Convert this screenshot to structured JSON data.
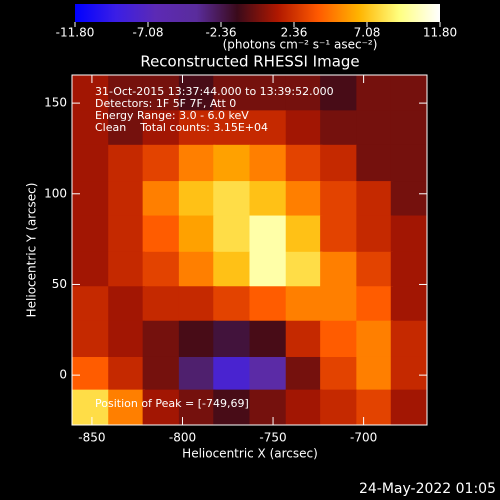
{
  "chart_data": {
    "type": "heatmap",
    "title": "Reconstructed RHESSI Image",
    "x_label": "Heliocentric X (arcsec)",
    "y_label": "Heliocentric Y (arcsec)",
    "annotations": [
      "31-Oct-2015 13:37:44.000 to 13:39:52.000",
      "Detectors: 1F 5F 7F, Att 0",
      "Energy Range: 3.0 - 6.0 keV",
      "Clean    Total counts: 3.15E+04"
    ],
    "peak_label": "Position of Peak = [-749,69]",
    "footer": "24-May-2022 01:05",
    "colorbar_label": "(photons cm⁻² s⁻¹ asec⁻²)",
    "clim": [
      -11.8,
      11.8
    ],
    "colorbar_ticks": [
      {
        "value": -11.8,
        "label": "-11.80"
      },
      {
        "value": -7.08,
        "label": "-7.08"
      },
      {
        "value": -2.36,
        "label": "-2.36"
      },
      {
        "value": 2.36,
        "label": "2.36"
      },
      {
        "value": 7.08,
        "label": "7.08"
      },
      {
        "value": 11.8,
        "label": "11.80"
      }
    ],
    "colormap": [
      "#0000ff",
      "#3a1ee6",
      "#5c2ab4",
      "#5a2c9c",
      "#3a0a1a",
      "#b01800",
      "#ff5a00",
      "#ffb400",
      "#ffff80",
      "#ffffff"
    ],
    "xlim": [
      -861,
      -665
    ],
    "ylim": [
      -27.5,
      165.5
    ],
    "xticks": [
      -850,
      -800,
      -750,
      -700
    ],
    "yticks": [
      0,
      50,
      100,
      150
    ],
    "x": [
      -851,
      -831,
      -812,
      -792,
      -773,
      -753,
      -733,
      -714,
      -694,
      -675
    ],
    "y": [
      156,
      136,
      117,
      97,
      78,
      58,
      39,
      20,
      0,
      -18
    ],
    "z": [
      [
        1,
        0,
        0,
        -1,
        0,
        0,
        0,
        -1,
        0,
        0
      ],
      [
        1,
        0,
        1,
        2,
        2,
        2,
        1,
        0,
        0,
        0
      ],
      [
        1,
        2,
        3,
        5,
        6,
        5,
        3,
        2,
        0,
        0
      ],
      [
        1,
        2,
        5,
        7,
        8,
        7,
        5,
        3,
        2,
        0
      ],
      [
        1,
        2,
        4,
        6,
        8,
        10,
        7,
        3,
        2,
        1
      ],
      [
        1,
        2,
        3,
        5,
        7,
        10,
        8,
        5,
        3,
        1
      ],
      [
        2,
        1,
        2,
        2,
        3,
        4,
        5,
        5,
        4,
        1
      ],
      [
        2,
        1,
        0,
        -1,
        -2,
        -1,
        2,
        4,
        5,
        2
      ],
      [
        4,
        2,
        0,
        -3,
        -8,
        -5,
        0,
        3,
        5,
        2
      ],
      [
        8,
        5,
        1,
        0,
        -1,
        0,
        1,
        2,
        3,
        1
      ]
    ]
  }
}
